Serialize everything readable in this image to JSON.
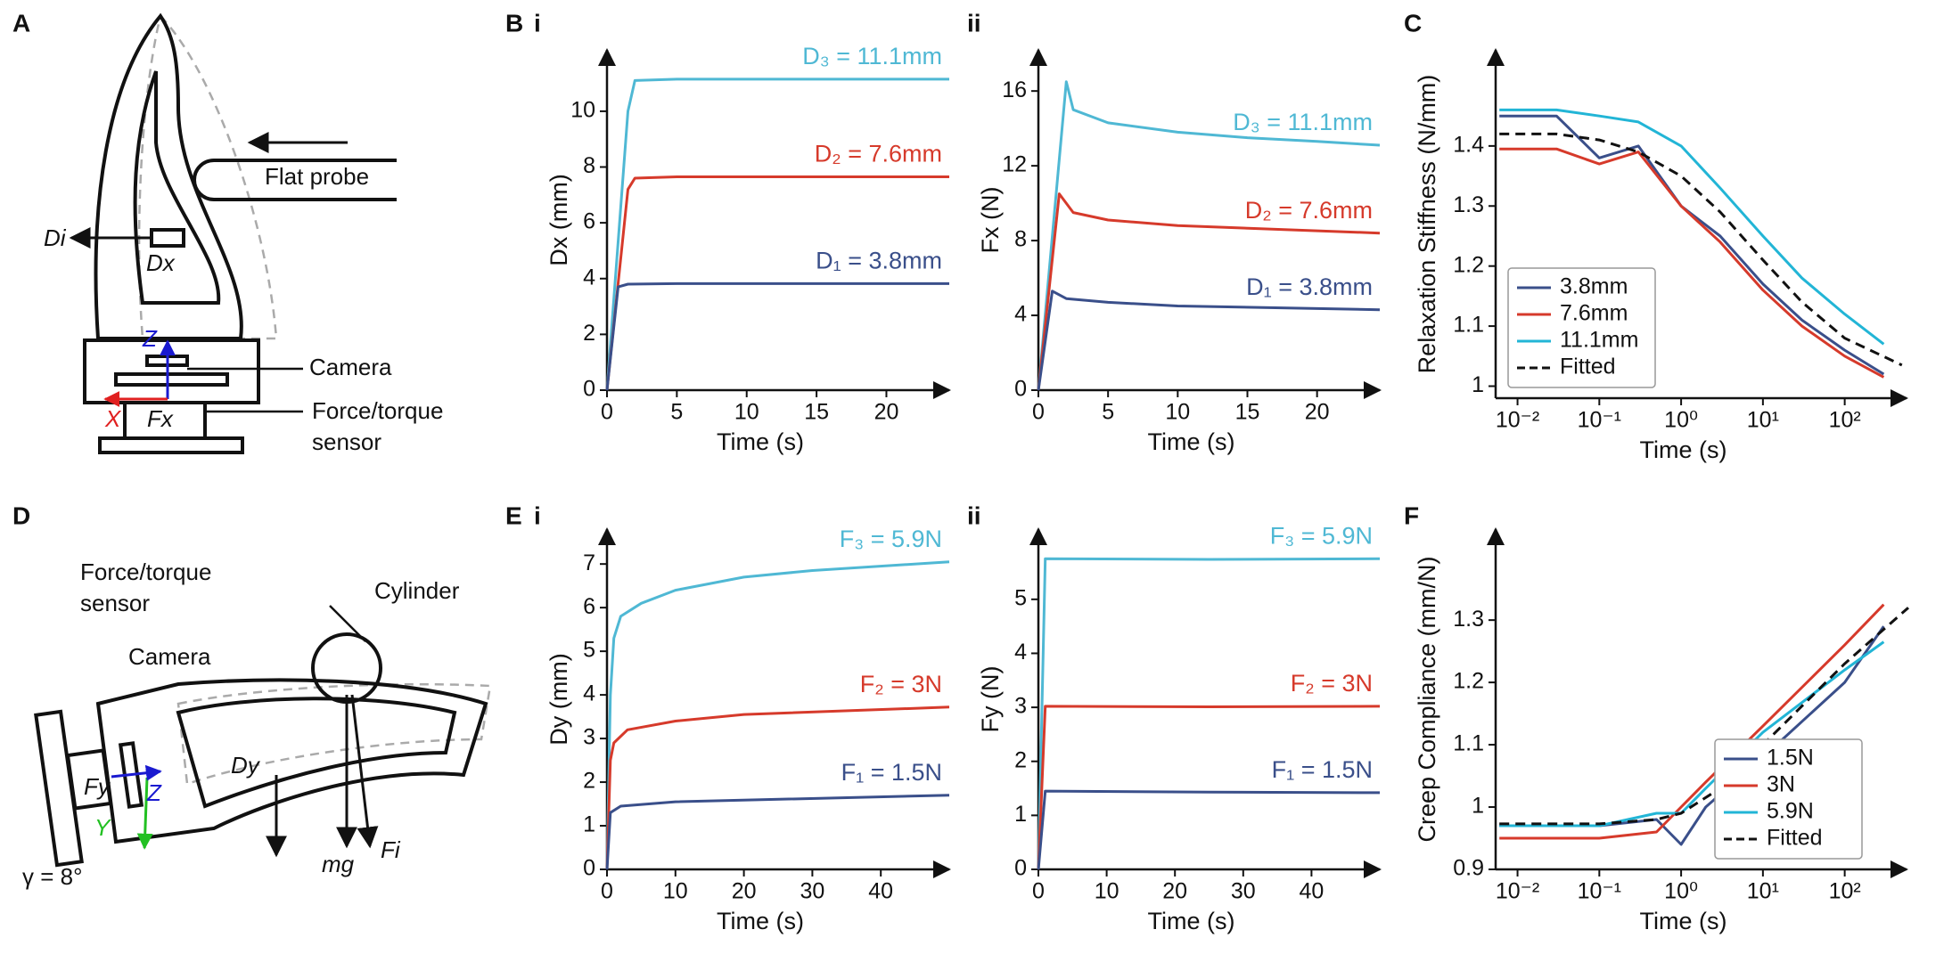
{
  "panel_labels": [
    "A",
    "B",
    "i",
    "ii",
    "C",
    "D",
    "E",
    "i",
    "ii",
    "F"
  ],
  "diagram_A": [
    "Flat probe",
    "Di",
    "Dx",
    "Camera",
    "Force/torque",
    "sensor",
    "X",
    "Z",
    "Fx"
  ],
  "diagram_D": [
    "Force/torque",
    "sensor",
    "Cylinder",
    "Camera",
    "Fy",
    "Y",
    "Z",
    "Dy",
    "mg",
    "Fi",
    "γ = 8°"
  ],
  "chart_data": [
    {
      "type": "line",
      "x_label": "Time (s)",
      "y_label": "Dx (mm)",
      "xlim": [
        0,
        24.5
      ],
      "ylim": [
        0,
        12.2
      ],
      "xticks": [
        0,
        5,
        10,
        15,
        20
      ],
      "yticks": [
        0,
        2,
        4,
        6,
        8,
        10
      ],
      "series": [
        {
          "name": "D₃ = 11.1mm",
          "color": "#4fb8d4",
          "x": [
            0,
            1.5,
            2,
            5,
            10,
            24.5
          ],
          "values": [
            0,
            10,
            11.1,
            11.15,
            11.15,
            11.15
          ]
        },
        {
          "name": "D₂ = 7.6mm",
          "color": "#d63a2b",
          "x": [
            0,
            1.5,
            2,
            5,
            10,
            24.5
          ],
          "values": [
            0,
            7.2,
            7.6,
            7.65,
            7.65,
            7.65
          ]
        },
        {
          "name": "D₁ = 3.8mm",
          "color": "#3a4f8a",
          "x": [
            0,
            0.8,
            1.5,
            5,
            10,
            24.5
          ],
          "values": [
            0,
            3.7,
            3.8,
            3.82,
            3.82,
            3.82
          ]
        }
      ]
    },
    {
      "type": "line",
      "x_label": "Time (s)",
      "y_label": "Fx (N)",
      "xlim": [
        0,
        24.5
      ],
      "ylim": [
        0,
        18.2
      ],
      "xticks": [
        0,
        5,
        10,
        15,
        20
      ],
      "yticks": [
        0,
        4,
        8,
        12,
        16
      ],
      "series": [
        {
          "name": "D₃ = 11.1mm",
          "color": "#4fb8d4",
          "x": [
            0,
            2,
            2.5,
            5,
            10,
            15,
            20,
            24.5
          ],
          "values": [
            0,
            16.5,
            15,
            14.3,
            13.8,
            13.5,
            13.3,
            13.1
          ]
        },
        {
          "name": "D₂ = 7.6mm",
          "color": "#d63a2b",
          "x": [
            0,
            1.5,
            2.5,
            5,
            10,
            24.5
          ],
          "values": [
            0,
            10.5,
            9.5,
            9.1,
            8.8,
            8.4
          ]
        },
        {
          "name": "D₁ = 3.8mm",
          "color": "#3a4f8a",
          "x": [
            0,
            1,
            2,
            5,
            10,
            24.5
          ],
          "values": [
            0,
            5.3,
            4.9,
            4.7,
            4.5,
            4.3
          ]
        }
      ]
    },
    {
      "type": "line",
      "x_label": "Time (s)",
      "y_label": "Relaxation Stiffness (N/mm)",
      "xlog": true,
      "xlim": [
        0.0054,
        570
      ],
      "ylim": [
        0.98,
        1.56
      ],
      "xticks": [
        {
          "value": 0.01,
          "label": "10⁻²"
        },
        {
          "value": 0.1,
          "label": "10⁻¹"
        },
        {
          "value": 1,
          "label": "10⁰"
        },
        {
          "value": 10,
          "label": "10¹"
        },
        {
          "value": 100,
          "label": "10²"
        }
      ],
      "yticks": [
        1,
        1.1,
        1.2,
        1.3,
        1.4
      ],
      "legend": "lower left",
      "series": [
        {
          "name": "3.8mm",
          "color": "#3a4f8a",
          "x": [
            0.006,
            0.03,
            0.1,
            0.3,
            1,
            3,
            10,
            30,
            100,
            300
          ],
          "values": [
            1.45,
            1.45,
            1.38,
            1.4,
            1.3,
            1.25,
            1.17,
            1.11,
            1.06,
            1.02
          ]
        },
        {
          "name": "7.6mm",
          "color": "#d63a2b",
          "x": [
            0.006,
            0.03,
            0.1,
            0.3,
            1,
            3,
            10,
            30,
            100,
            300
          ],
          "values": [
            1.395,
            1.395,
            1.37,
            1.39,
            1.3,
            1.24,
            1.16,
            1.1,
            1.05,
            1.015
          ]
        },
        {
          "name": "11.1mm",
          "color": "#22b5d6",
          "x": [
            0.006,
            0.03,
            0.1,
            0.3,
            1,
            3,
            10,
            30,
            100,
            300
          ],
          "values": [
            1.46,
            1.46,
            1.45,
            1.44,
            1.4,
            1.33,
            1.25,
            1.18,
            1.12,
            1.07
          ]
        },
        {
          "name": "Fitted",
          "color": "#111111",
          "linestyle": "dashed",
          "x": [
            0.006,
            0.03,
            0.1,
            0.3,
            1,
            3,
            10,
            30,
            100,
            500
          ],
          "values": [
            1.42,
            1.42,
            1.41,
            1.39,
            1.35,
            1.29,
            1.21,
            1.14,
            1.08,
            1.035
          ]
        }
      ]
    },
    {
      "type": "line",
      "x_label": "Time (s)",
      "y_label": "Dy (mm)",
      "xlim": [
        0,
        50
      ],
      "ylim": [
        0,
        7.8
      ],
      "xticks": [
        0,
        10,
        20,
        30,
        40
      ],
      "yticks": [
        0,
        1,
        2,
        3,
        4,
        5,
        6,
        7
      ],
      "series": [
        {
          "name": "F₃ = 5.9N",
          "color": "#4fb8d4",
          "x": [
            0,
            0.5,
            1,
            2,
            5,
            10,
            20,
            30,
            50
          ],
          "values": [
            0,
            4,
            5.3,
            5.8,
            6.1,
            6.4,
            6.7,
            6.85,
            7.05
          ]
        },
        {
          "name": "F₂ = 3N",
          "color": "#d63a2b",
          "x": [
            0,
            0.5,
            1,
            3,
            10,
            20,
            50
          ],
          "values": [
            0,
            2.5,
            2.9,
            3.2,
            3.4,
            3.55,
            3.72
          ]
        },
        {
          "name": "F₁ = 1.5N",
          "color": "#3a4f8a",
          "x": [
            0,
            0.5,
            2,
            10,
            50
          ],
          "values": [
            0,
            1.3,
            1.45,
            1.55,
            1.7
          ]
        }
      ]
    },
    {
      "type": "line",
      "x_label": "Time (s)",
      "y_label": "Fy (N)",
      "xlim": [
        0,
        50
      ],
      "ylim": [
        0,
        6.3
      ],
      "xticks": [
        0,
        10,
        20,
        30,
        40
      ],
      "yticks": [
        0,
        1,
        2,
        3,
        4,
        5
      ],
      "series": [
        {
          "name": "F₃ = 5.9N",
          "color": "#4fb8d4",
          "x": [
            0,
            1,
            25,
            50
          ],
          "values": [
            0,
            5.75,
            5.74,
            5.75
          ]
        },
        {
          "name": "F₂ = 3N",
          "color": "#d63a2b",
          "x": [
            0,
            1,
            25,
            50
          ],
          "values": [
            0,
            3.02,
            3.01,
            3.02
          ]
        },
        {
          "name": "F₁ = 1.5N",
          "color": "#3a4f8a",
          "x": [
            0,
            1,
            25,
            50
          ],
          "values": [
            0,
            1.45,
            1.43,
            1.42
          ]
        }
      ]
    },
    {
      "type": "line",
      "x_label": "Time (s)",
      "y_label": "Creep Compliance (mm/N)",
      "xlog": true,
      "xlim": [
        0.0054,
        570
      ],
      "ylim": [
        0.9,
        1.446
      ],
      "xticks": [
        {
          "value": 0.01,
          "label": "10⁻²"
        },
        {
          "value": 0.1,
          "label": "10⁻¹"
        },
        {
          "value": 1,
          "label": "10⁰"
        },
        {
          "value": 10,
          "label": "10¹"
        },
        {
          "value": 100,
          "label": "10²"
        }
      ],
      "yticks": [
        0.9,
        1,
        1.1,
        1.2,
        1.3
      ],
      "legend": "lower right",
      "series": [
        {
          "name": "1.5N",
          "color": "#3a4f8a",
          "x": [
            0.006,
            0.1,
            0.5,
            1,
            2,
            10,
            100,
            300
          ],
          "values": [
            0.97,
            0.97,
            0.98,
            0.94,
            1.0,
            1.08,
            1.2,
            1.29
          ]
        },
        {
          "name": "3N",
          "color": "#d63a2b",
          "x": [
            0.006,
            0.1,
            0.5,
            1,
            2,
            10,
            100,
            300
          ],
          "values": [
            0.95,
            0.95,
            0.96,
            1.0,
            1.04,
            1.13,
            1.26,
            1.325
          ]
        },
        {
          "name": "5.9N",
          "color": "#22b5d6",
          "x": [
            0.006,
            0.1,
            0.5,
            1,
            2,
            10,
            100,
            300
          ],
          "values": [
            0.97,
            0.97,
            0.99,
            0.99,
            1.03,
            1.12,
            1.22,
            1.265
          ]
        },
        {
          "name": "Fitted",
          "color": "#111111",
          "linestyle": "dashed",
          "x": [
            0.006,
            0.1,
            0.5,
            1,
            3,
            10,
            100,
            600
          ],
          "values": [
            0.973,
            0.973,
            0.98,
            0.99,
            1.03,
            1.1,
            1.23,
            1.32
          ]
        }
      ]
    }
  ]
}
